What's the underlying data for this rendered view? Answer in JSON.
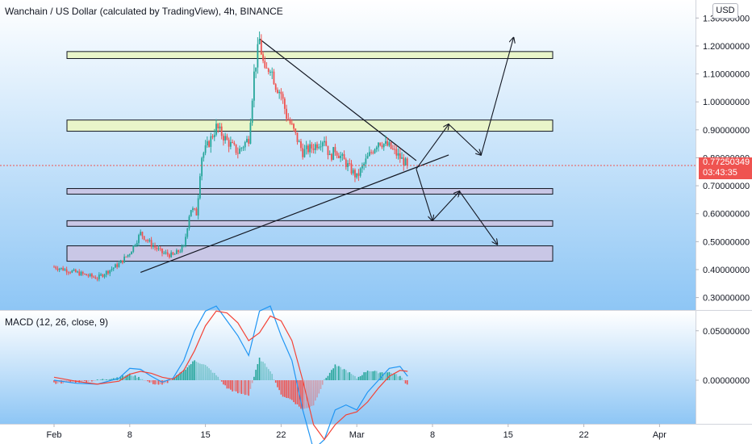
{
  "header": {
    "title": "Wanchain / US Dollar (calculated by TradingView), 4h, BINANCE"
  },
  "currency_button": "USD",
  "current_price": {
    "value": "0.77250349",
    "countdown": "03:43:35",
    "color": "#ef5350"
  },
  "macd": {
    "title": "MACD (12, 26, close, 9)",
    "macd_color": "#2196f3",
    "signal_color": "#f44336",
    "hist_up_color": "#26a69a",
    "hist_down_color": "#ef5350"
  },
  "colors": {
    "background_gradient_top": "#ffffff",
    "background_gradient_bottom": "#8ec6f5",
    "candle_up": "#26a69a",
    "candle_down": "#ef5350",
    "resistance_zone": "#e9f5c9",
    "support_zone": "#c9c7e6"
  },
  "chart_data": [
    {
      "type": "candlestick",
      "title": "Wanchain / US Dollar (calculated by TradingView), 4h, BINANCE",
      "y_tick_labels": [
        "1.30000000",
        "1.20000000",
        "1.10000000",
        "1.00000000",
        "0.90000000",
        "0.80000000",
        "0.70000000",
        "0.60000000",
        "0.50000000",
        "0.40000000",
        "0.30000000"
      ],
      "y_ticks": [
        1.3,
        1.2,
        1.1,
        1.0,
        0.9,
        0.8,
        0.7,
        0.6,
        0.5,
        0.4,
        0.3
      ],
      "x_tick_labels": [
        "Feb",
        "8",
        "15",
        "22",
        "Mar",
        "8",
        "15",
        "22",
        "Apr"
      ],
      "ylim": [
        0.27,
        1.32
      ],
      "log_scale": false,
      "grid": false,
      "price_path": [
        [
          0,
          0.41
        ],
        [
          2,
          0.39
        ],
        [
          4,
          0.37
        ],
        [
          6,
          0.42
        ],
        [
          7,
          0.46
        ],
        [
          8,
          0.53
        ],
        [
          9,
          0.49
        ],
        [
          10,
          0.46
        ],
        [
          11,
          0.45
        ],
        [
          12,
          0.48
        ],
        [
          12.6,
          0.62
        ],
        [
          13.2,
          0.6
        ],
        [
          13.6,
          0.8
        ],
        [
          14.4,
          0.86
        ],
        [
          15,
          0.91
        ],
        [
          16,
          0.86
        ],
        [
          17,
          0.82
        ],
        [
          18,
          0.87
        ],
        [
          18.5,
          1.1
        ],
        [
          19,
          1.22
        ],
        [
          19.5,
          1.1
        ],
        [
          20,
          1.13
        ],
        [
          20.5,
          1.06
        ],
        [
          21,
          1.03
        ],
        [
          21.5,
          0.95
        ],
        [
          22,
          0.91
        ],
        [
          23,
          0.82
        ],
        [
          24,
          0.84
        ],
        [
          25,
          0.87
        ],
        [
          25.5,
          0.8
        ],
        [
          26,
          0.83
        ],
        [
          27,
          0.78
        ],
        [
          28,
          0.73
        ],
        [
          29,
          0.8
        ],
        [
          30,
          0.86
        ],
        [
          31,
          0.84
        ],
        [
          32,
          0.8
        ],
        [
          32.7,
          0.7725
        ]
      ],
      "zones": [
        {
          "kind": "resistance",
          "from": 1.155,
          "to": 1.18
        },
        {
          "kind": "resistance",
          "from": 0.895,
          "to": 0.935
        },
        {
          "kind": "support",
          "from": 0.67,
          "to": 0.69
        },
        {
          "kind": "support",
          "from": 0.555,
          "to": 0.575
        },
        {
          "kind": "support",
          "from": 0.43,
          "to": 0.485
        }
      ],
      "trendlines": [
        {
          "from": [
            19,
            1.225
          ],
          "to": [
            33.5,
            0.79
          ]
        },
        {
          "from": [
            8,
            0.39
          ],
          "to": [
            36.5,
            0.81
          ]
        }
      ],
      "projection_paths": [
        [
          [
            33.5,
            0.76
          ],
          [
            36.5,
            0.92
          ],
          [
            39.5,
            0.81
          ],
          [
            42.5,
            1.23
          ]
        ],
        [
          [
            33.5,
            0.76
          ],
          [
            35,
            0.575
          ],
          [
            37.5,
            0.68
          ],
          [
            41,
            0.49
          ]
        ]
      ],
      "last_price": 0.77250349
    },
    {
      "type": "line",
      "title": "MACD (12, 26, close, 9)",
      "y_tick_labels": [
        "0.05000000",
        "0.00000000"
      ],
      "y_ticks": [
        0.05,
        0.0
      ],
      "ylim": [
        -0.078,
        0.068
      ],
      "series": [
        {
          "values": [
            [
              0,
              0.0
            ],
            [
              2,
              -0.003
            ],
            [
              4,
              -0.004
            ],
            [
              6,
              0.002
            ],
            [
              7,
              0.012
            ],
            [
              8,
              0.011
            ],
            [
              9,
              0.004
            ],
            [
              10,
              -0.002
            ],
            [
              11,
              0.002
            ],
            [
              12,
              0.02
            ],
            [
              13,
              0.05
            ],
            [
              14,
              0.07
            ],
            [
              15,
              0.075
            ],
            [
              16,
              0.06
            ],
            [
              17,
              0.045
            ],
            [
              18,
              0.025
            ],
            [
              19,
              0.07
            ],
            [
              20,
              0.075
            ],
            [
              21,
              0.045
            ],
            [
              22,
              0.02
            ],
            [
              23,
              -0.03
            ],
            [
              24,
              -0.07
            ],
            [
              25,
              -0.06
            ],
            [
              26,
              -0.03
            ],
            [
              27,
              -0.025
            ],
            [
              28,
              -0.03
            ],
            [
              29,
              -0.012
            ],
            [
              30,
              0.0
            ],
            [
              31,
              0.012
            ],
            [
              32,
              0.014
            ],
            [
              32.7,
              0.004
            ]
          ]
        },
        {
          "values": [
            [
              0,
              0.003
            ],
            [
              2,
              -0.001
            ],
            [
              4,
              -0.004
            ],
            [
              6,
              -0.001
            ],
            [
              7,
              0.006
            ],
            [
              8,
              0.009
            ],
            [
              9,
              0.007
            ],
            [
              10,
              0.003
            ],
            [
              11,
              0.001
            ],
            [
              12,
              0.01
            ],
            [
              13,
              0.03
            ],
            [
              14,
              0.055
            ],
            [
              15,
              0.07
            ],
            [
              16,
              0.068
            ],
            [
              17,
              0.058
            ],
            [
              18,
              0.04
            ],
            [
              19,
              0.048
            ],
            [
              20,
              0.065
            ],
            [
              21,
              0.06
            ],
            [
              22,
              0.04
            ],
            [
              23,
              0.0
            ],
            [
              24,
              -0.045
            ],
            [
              25,
              -0.06
            ],
            [
              26,
              -0.045
            ],
            [
              27,
              -0.035
            ],
            [
              28,
              -0.032
            ],
            [
              29,
              -0.022
            ],
            [
              30,
              -0.008
            ],
            [
              31,
              0.004
            ],
            [
              32,
              0.01
            ],
            [
              32.7,
              0.009
            ]
          ]
        }
      ]
    }
  ]
}
